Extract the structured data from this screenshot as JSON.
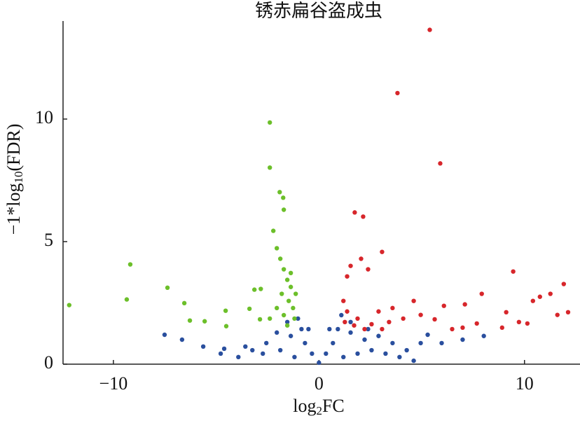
{
  "chart_data": {
    "type": "scatter",
    "title": "锈赤扁谷盗成虫",
    "x_label": [
      "log",
      "2",
      "FC"
    ],
    "y_label": [
      "−1*log",
      "10",
      "(FDR)"
    ],
    "xlim": [
      -12.45,
      12.7
    ],
    "ylim": [
      0,
      14
    ],
    "xticks": [
      {
        "value": -10,
        "label": "−10"
      },
      0,
      10
    ],
    "yticks": [
      0,
      5,
      10
    ],
    "series": [
      {
        "color": "#2a4f9e",
        "x": [
          -7.51,
          -6.66,
          -5.63,
          -4.78,
          -3.92,
          -3.24,
          -2.56,
          -2.05,
          -1.54,
          -1.02,
          -0.85,
          -0.68,
          -0.34,
          0,
          0.34,
          0.68,
          0.92,
          1.09,
          1.54,
          2.22,
          2.9,
          3.58,
          4.27,
          4.95,
          5.29,
          5.97,
          6.99,
          8.02,
          -1.88,
          -1.19,
          1.19,
          1.88,
          2.56,
          3.24,
          -2.73,
          -3.58,
          0.51,
          -0.51,
          -1.37,
          1.54,
          2.39,
          3.92,
          4.61,
          -4.61
        ],
        "values": [
          1.2,
          1.0,
          0.72,
          0.43,
          0.29,
          0.57,
          0.86,
          1.29,
          1.72,
          1.86,
          1.43,
          0.86,
          0.43,
          0.06,
          0.43,
          0.86,
          1.43,
          2.0,
          1.29,
          1.0,
          1.15,
          0.86,
          0.57,
          0.86,
          1.2,
          0.86,
          1.0,
          1.15,
          0.57,
          0.29,
          0.29,
          0.43,
          0.57,
          0.43,
          0.43,
          0.72,
          1.43,
          1.43,
          1.15,
          1.72,
          1.43,
          0.29,
          0.14,
          0.63
        ]
      },
      {
        "color": "#6cbf2a",
        "x": [
          -2.39,
          -2.39,
          -1.91,
          -1.74,
          -1.71,
          -9.18,
          -7.37,
          -9.35,
          -12.15,
          -6.55,
          -4.54,
          -5.56,
          -6.28,
          -4.51,
          -3.14,
          -2.83,
          -3.38,
          -2.87,
          -2.22,
          -2.05,
          -1.88,
          -1.71,
          -1.54,
          -1.37,
          -1.81,
          -1.47,
          -1.26,
          -1.71,
          -1.19,
          -2.05,
          -2.39,
          -1.54,
          -1.13,
          -1.37
        ],
        "values": [
          9.86,
          8.02,
          7.02,
          6.79,
          6.3,
          4.07,
          3.12,
          2.64,
          2.41,
          2.49,
          2.18,
          1.75,
          1.78,
          1.55,
          3.04,
          3.07,
          2.26,
          1.83,
          5.44,
          4.73,
          4.3,
          3.87,
          3.44,
          3.15,
          2.87,
          2.58,
          2.29,
          2.0,
          1.86,
          2.29,
          1.86,
          1.58,
          2.87,
          3.72
        ]
      },
      {
        "color": "#d7262b",
        "x": [
          5.39,
          3.82,
          5.9,
          1.74,
          2.15,
          3.07,
          2.05,
          1.54,
          2.39,
          1.37,
          9.45,
          11.91,
          11.26,
          10.75,
          10.41,
          7.92,
          7.1,
          6.08,
          4.61,
          3.58,
          2.9,
          12.12,
          11.6,
          9.11,
          9.73,
          10.14,
          8.91,
          7.68,
          6.99,
          6.48,
          5.63,
          4.95,
          4.1,
          3.41,
          2.56,
          1.88,
          1.19,
          1.37,
          1.71,
          2.22,
          3.07,
          1.26
        ],
        "values": [
          13.64,
          11.06,
          8.19,
          6.19,
          6.02,
          4.58,
          4.3,
          4.01,
          3.87,
          3.58,
          3.78,
          3.27,
          2.87,
          2.75,
          2.58,
          2.87,
          2.44,
          2.38,
          2.58,
          2.29,
          2.15,
          2.12,
          2.01,
          2.12,
          1.72,
          1.66,
          1.49,
          1.66,
          1.49,
          1.43,
          1.83,
          2.01,
          1.86,
          1.72,
          1.63,
          1.86,
          2.58,
          2.15,
          1.58,
          1.43,
          1.43,
          1.72
        ]
      }
    ]
  }
}
